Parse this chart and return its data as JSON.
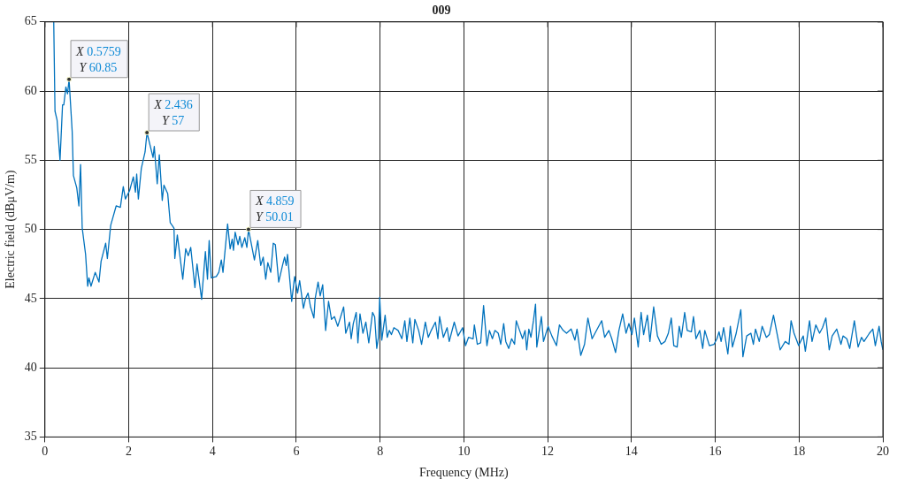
{
  "chart_data": {
    "type": "line",
    "title": "009",
    "xlabel": "Frequency (MHz)",
    "ylabel": "Electric field (dBμV/m)",
    "xlim": [
      0,
      20
    ],
    "xticks": [
      0,
      2,
      4,
      6,
      8,
      10,
      12,
      14,
      16,
      18,
      20
    ],
    "ylim": [
      35,
      65
    ],
    "yticks": [
      35,
      40,
      45,
      50,
      55,
      60,
      65
    ],
    "grid": true,
    "line_style": "solid",
    "marker": "none",
    "x": [
      0.21,
      0.24,
      0.29,
      0.36,
      0.42,
      0.45,
      0.5,
      0.54,
      0.5759,
      0.65,
      0.68,
      0.76,
      0.81,
      0.85,
      0.89,
      0.97,
      1.02,
      1.05,
      1.1,
      1.2,
      1.29,
      1.34,
      1.45,
      1.49,
      1.57,
      1.7,
      1.8,
      1.87,
      1.92,
      2.02,
      2.11,
      2.16,
      2.19,
      2.23,
      2.3,
      2.39,
      2.436,
      2.58,
      2.61,
      2.68,
      2.73,
      2.8,
      2.84,
      2.93,
      2.99,
      3.08,
      3.1,
      3.16,
      3.29,
      3.36,
      3.42,
      3.48,
      3.58,
      3.63,
      3.74,
      3.83,
      3.88,
      3.92,
      3.97,
      4.09,
      4.15,
      4.21,
      4.25,
      4.36,
      4.42,
      4.47,
      4.5,
      4.54,
      4.61,
      4.65,
      4.7,
      4.77,
      4.82,
      4.859,
      5.0,
      5.08,
      5.15,
      5.21,
      5.27,
      5.32,
      5.39,
      5.45,
      5.5,
      5.58,
      5.67,
      5.72,
      5.76,
      5.79,
      5.89,
      5.96,
      6.03,
      6.08,
      6.17,
      6.22,
      6.28,
      6.34,
      6.42,
      6.45,
      6.52,
      6.57,
      6.63,
      6.7,
      6.77,
      6.84,
      6.91,
      6.99,
      7.13,
      7.18,
      7.27,
      7.31,
      7.36,
      7.43,
      7.47,
      7.52,
      7.59,
      7.66,
      7.73,
      7.82,
      7.87,
      7.92,
      7.96,
      7.99,
      8.04,
      8.12,
      8.17,
      8.22,
      8.27,
      8.33,
      8.43,
      8.52,
      8.59,
      8.64,
      8.71,
      8.78,
      8.83,
      8.92,
      8.99,
      9.08,
      9.15,
      9.22,
      9.32,
      9.38,
      9.42,
      9.51,
      9.6,
      9.65,
      9.77,
      9.86,
      9.97,
      10.04,
      10.11,
      10.22,
      10.25,
      10.32,
      10.4,
      10.47,
      10.55,
      10.61,
      10.68,
      10.74,
      10.82,
      10.88,
      10.95,
      11.0,
      11.07,
      11.14,
      11.21,
      11.25,
      11.33,
      11.4,
      11.46,
      11.5,
      11.55,
      11.6,
      11.66,
      11.71,
      11.74,
      11.85,
      11.9,
      12.01,
      12.1,
      12.21,
      12.28,
      12.37,
      12.45,
      12.56,
      12.65,
      12.7,
      12.79,
      12.88,
      12.96,
      13.06,
      13.2,
      13.29,
      13.36,
      13.46,
      13.53,
      13.62,
      13.7,
      13.79,
      13.87,
      13.94,
      14.01,
      14.07,
      14.16,
      14.23,
      14.29,
      14.38,
      14.44,
      14.53,
      14.62,
      14.71,
      14.8,
      14.88,
      14.95,
      15.01,
      15.09,
      15.14,
      15.19,
      15.27,
      15.33,
      15.43,
      15.48,
      15.54,
      15.63,
      15.7,
      15.75,
      15.86,
      15.97,
      16.04,
      16.09,
      16.14,
      16.2,
      16.3,
      16.36,
      16.41,
      16.5,
      16.61,
      16.66,
      16.75,
      16.85,
      16.91,
      16.96,
      17.05,
      17.12,
      17.22,
      17.29,
      17.39,
      17.46,
      17.55,
      17.67,
      17.76,
      17.81,
      17.88,
      17.99,
      18.1,
      18.15,
      18.25,
      18.31,
      18.4,
      18.49,
      18.56,
      18.64,
      18.72,
      18.79,
      18.9,
      19.0,
      19.05,
      19.14,
      19.21,
      19.32,
      19.41,
      19.49,
      19.55,
      19.68,
      19.76,
      19.82,
      19.91,
      19.96,
      20.0
    ],
    "series": [
      {
        "color": "#0072bd",
        "values": [
          65,
          58.55,
          57.9,
          55.0,
          59.0,
          59.0,
          60.3,
          59.8,
          60.85,
          57.1,
          53.9,
          53.0,
          51.7,
          54.7,
          50.1,
          48.2,
          45.9,
          46.5,
          45.9,
          46.9,
          46.2,
          47.7,
          49.0,
          47.9,
          50.3,
          51.7,
          51.6,
          53.1,
          52.2,
          52.8,
          53.8,
          52.7,
          54.0,
          52.2,
          54.4,
          55.6,
          57,
          55.2,
          56.0,
          53.3,
          55.4,
          52.1,
          53.2,
          52.6,
          50.5,
          50.1,
          47.9,
          49.6,
          46.4,
          48.6,
          48.1,
          48.7,
          45.8,
          47.5,
          44.95,
          48.4,
          46.4,
          49.2,
          46.5,
          46.6,
          46.9,
          47.8,
          46.9,
          50.4,
          48.6,
          49.3,
          48.5,
          49.8,
          48.9,
          49.5,
          48.7,
          49.4,
          48.7,
          50.01,
          47.8,
          49.2,
          47.4,
          48.0,
          46.4,
          47.6,
          46.9,
          49.0,
          48.9,
          46.2,
          47.4,
          48.0,
          47.4,
          48.2,
          44.8,
          46.6,
          45.4,
          46.3,
          44.3,
          45.0,
          45.4,
          44.4,
          43.6,
          45.0,
          46.2,
          45.2,
          46.0,
          42.7,
          44.8,
          43.5,
          43.7,
          43.0,
          44.4,
          42.5,
          43.3,
          42.1,
          43.2,
          44.0,
          41.8,
          43.9,
          42.5,
          43.3,
          41.8,
          44.0,
          43.7,
          41.4,
          42.2,
          45.1,
          42.0,
          43.8,
          42.2,
          42.7,
          42.4,
          42.9,
          42.7,
          42.1,
          43.4,
          41.9,
          43.6,
          41.8,
          43.5,
          42.7,
          41.7,
          43.3,
          42.2,
          42.7,
          43.3,
          42.1,
          43.7,
          42.2,
          42.9,
          41.9,
          43.3,
          42.3,
          42.9,
          41.6,
          42.2,
          42.1,
          43.1,
          41.7,
          41.8,
          44.5,
          41.6,
          42.7,
          42.1,
          42.7,
          42.5,
          41.7,
          43.2,
          41.9,
          41.4,
          42.1,
          41.7,
          43.4,
          42.7,
          42.1,
          42.7,
          41.3,
          42.8,
          42.2,
          43.4,
          44.6,
          41.5,
          43.7,
          41.9,
          43.0,
          42.3,
          41.6,
          43.1,
          42.7,
          42.5,
          42.8,
          42.0,
          42.8,
          40.9,
          41.7,
          43.6,
          42.1,
          42.9,
          43.4,
          42.2,
          42.7,
          42.1,
          41.1,
          42.7,
          43.9,
          42.5,
          43.2,
          42.4,
          43.6,
          41.5,
          44.0,
          42.4,
          43.8,
          41.9,
          44.4,
          42.3,
          41.7,
          41.9,
          42.5,
          43.6,
          41.6,
          41.5,
          43.0,
          42.2,
          44.0,
          42.7,
          42.6,
          43.7,
          42.1,
          42.7,
          41.4,
          42.7,
          41.6,
          41.7,
          42.1,
          42.6,
          41.9,
          42.9,
          41.0,
          43.0,
          41.5,
          42.5,
          44.2,
          40.8,
          42.3,
          42.5,
          41.7,
          42.8,
          41.9,
          43.0,
          42.2,
          42.4,
          43.8,
          42.7,
          41.3,
          41.9,
          41.7,
          43.4,
          42.5,
          41.6,
          42.3,
          41.2,
          43.4,
          41.9,
          43.1,
          42.5,
          42.9,
          43.6,
          41.3,
          42.3,
          42.8,
          41.7,
          42.3,
          42.1,
          41.4,
          43.4,
          41.5,
          42.2,
          41.9,
          42.5,
          42.8,
          41.6,
          43.0,
          41.9,
          41.3
        ]
      }
    ],
    "annotations": [
      {
        "text": "X 0.5759\nY 60.85",
        "x": 0.5759,
        "y": 60.85
      },
      {
        "text": "X 2.436\nY 57",
        "x": 2.436,
        "y": 57
      },
      {
        "text": "X 4.859\nY 50.01",
        "x": 4.859,
        "y": 50.01
      }
    ]
  }
}
